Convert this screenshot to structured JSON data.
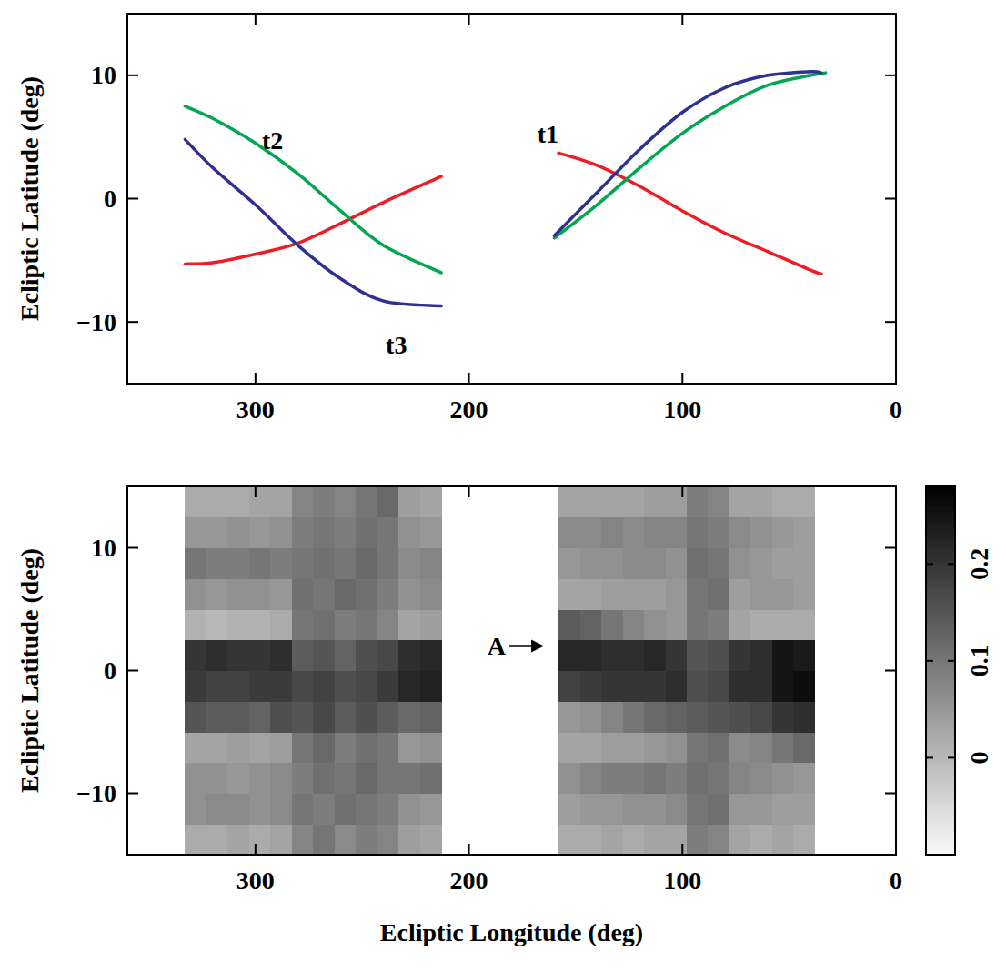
{
  "chart_data": [
    {
      "type": "line",
      "ylabel": "Ecliptic Latitude (deg)",
      "xlim": [
        360,
        0
      ],
      "xticks": [
        300,
        200,
        100,
        0
      ],
      "ylim": [
        -15,
        15
      ],
      "yticks": [
        {
          "value": -10,
          "label": "−10"
        },
        0,
        10
      ],
      "series": [
        {
          "name": "t1",
          "color": "#ee1c25",
          "label_at": [
            163,
            5.2
          ],
          "x": [
            333,
            320,
            300,
            280,
            260,
            240,
            213,
            186,
            158,
            140,
            120,
            100,
            80,
            60,
            40,
            35
          ],
          "values": [
            -5.3,
            -5.2,
            -4.5,
            -3.6,
            -2,
            -0.3,
            1.8,
            null,
            3.7,
            2.7,
            1,
            -1,
            -2.8,
            -4.3,
            -5.8,
            -6.1
          ]
        },
        {
          "name": "t2",
          "color": "#00a651",
          "label_at": [
            292,
            4.7
          ],
          "x": [
            333,
            320,
            300,
            280,
            260,
            240,
            213,
            186,
            160,
            140,
            120,
            100,
            80,
            60,
            40,
            33
          ],
          "values": [
            7.5,
            6.5,
            4.5,
            2,
            -1,
            -3.8,
            -6,
            null,
            -3.2,
            -0.5,
            2.5,
            5.3,
            7.5,
            9.2,
            10,
            10.2
          ]
        },
        {
          "name": "t3",
          "color": "#2e3192",
          "label_at": [
            234,
            -11.9
          ],
          "x": [
            333,
            320,
            300,
            280,
            260,
            240,
            213,
            186,
            160,
            140,
            120,
            100,
            80,
            60,
            40,
            35
          ],
          "values": [
            4.8,
            2.5,
            -0.5,
            -3.8,
            -6.5,
            -8.3,
            -8.7,
            null,
            -3,
            0.5,
            4,
            7,
            9,
            10,
            10.3,
            10.2
          ]
        }
      ]
    },
    {
      "type": "heatmap",
      "xlabel": "Ecliptic Longitude (deg)",
      "ylabel": "Ecliptic Latitude (deg)",
      "xlim": [
        360,
        0
      ],
      "xticks": [
        300,
        200,
        100,
        0
      ],
      "ylim": [
        -15,
        15
      ],
      "yticks": [
        {
          "value": -10,
          "label": "−10"
        },
        0,
        10
      ],
      "x_edges": [
        333,
        323,
        313,
        303,
        293,
        283,
        273,
        263,
        253,
        243,
        233,
        223,
        213,
        158,
        148,
        138,
        128,
        118,
        108,
        98,
        88,
        78,
        68,
        58,
        48,
        38
      ],
      "y_edges": [
        -15,
        -12.5,
        -10,
        -7.5,
        -5,
        -2.5,
        0,
        2.5,
        5,
        7.5,
        10,
        12.5,
        15
      ],
      "cells": [
        [
          0.02,
          0.02,
          0.03,
          0.02,
          0.03,
          0.08,
          0.1,
          0.07,
          0.09,
          0.08,
          0.04,
          0.03,
          null,
          0.02,
          0.02,
          0.03,
          0.02,
          0.03,
          0.03,
          0.09,
          0.08,
          0.03,
          0.02,
          0.03,
          0.02
        ],
        [
          0.06,
          0.07,
          0.07,
          0.06,
          0.07,
          0.1,
          0.09,
          0.11,
          0.1,
          0.09,
          0.06,
          0.05,
          null,
          0.04,
          0.05,
          0.05,
          0.06,
          0.06,
          0.07,
          0.1,
          0.11,
          0.05,
          0.05,
          0.04,
          0.04
        ],
        [
          0.06,
          0.06,
          0.05,
          0.06,
          0.07,
          0.09,
          0.11,
          0.1,
          0.12,
          0.1,
          0.1,
          0.11,
          null,
          0.06,
          0.08,
          0.09,
          0.09,
          0.1,
          0.09,
          0.11,
          0.1,
          0.08,
          0.07,
          0.06,
          0.05
        ],
        [
          0.03,
          0.03,
          0.04,
          0.03,
          0.04,
          0.1,
          0.12,
          0.09,
          0.11,
          0.1,
          0.05,
          0.06,
          null,
          0.03,
          0.03,
          0.04,
          0.04,
          0.05,
          0.06,
          0.1,
          0.11,
          0.07,
          0.08,
          0.1,
          0.12
        ],
        [
          0.15,
          0.14,
          0.14,
          0.13,
          0.16,
          0.15,
          0.17,
          0.14,
          0.16,
          0.14,
          0.12,
          0.13,
          null,
          0.05,
          0.06,
          0.08,
          0.1,
          0.12,
          0.13,
          0.14,
          0.15,
          0.16,
          0.17,
          0.2,
          0.21
        ],
        [
          0.19,
          0.18,
          0.18,
          0.19,
          0.19,
          0.17,
          0.18,
          0.16,
          0.17,
          0.19,
          0.22,
          0.23,
          null,
          0.18,
          0.19,
          0.2,
          0.2,
          0.2,
          0.21,
          0.16,
          0.17,
          0.21,
          0.21,
          0.25,
          0.26
        ],
        [
          0.2,
          0.21,
          0.2,
          0.2,
          0.21,
          0.14,
          0.15,
          0.13,
          0.16,
          0.17,
          0.21,
          0.22,
          null,
          0.22,
          0.22,
          0.21,
          0.21,
          0.22,
          0.2,
          0.15,
          0.16,
          0.2,
          0.21,
          0.25,
          0.24
        ],
        [
          0.01,
          0.0,
          0.01,
          0.01,
          0.02,
          0.1,
          0.11,
          0.09,
          0.1,
          0.08,
          0.03,
          0.04,
          null,
          0.14,
          0.13,
          0.1,
          0.08,
          0.06,
          0.05,
          0.1,
          0.09,
          0.03,
          0.02,
          0.02,
          0.02
        ],
        [
          0.06,
          0.05,
          0.06,
          0.06,
          0.05,
          0.11,
          0.1,
          0.12,
          0.11,
          0.09,
          0.06,
          0.07,
          null,
          0.03,
          0.03,
          0.04,
          0.04,
          0.04,
          0.05,
          0.1,
          0.11,
          0.04,
          0.05,
          0.05,
          0.04
        ],
        [
          0.1,
          0.09,
          0.09,
          0.1,
          0.09,
          0.1,
          0.11,
          0.1,
          0.12,
          0.1,
          0.07,
          0.08,
          null,
          0.05,
          0.06,
          0.06,
          0.07,
          0.07,
          0.06,
          0.11,
          0.1,
          0.06,
          0.05,
          0.04,
          0.04
        ],
        [
          0.05,
          0.05,
          0.06,
          0.05,
          0.06,
          0.09,
          0.1,
          0.09,
          0.11,
          0.1,
          0.06,
          0.05,
          null,
          0.07,
          0.07,
          0.08,
          0.07,
          0.08,
          0.08,
          0.1,
          0.09,
          0.07,
          0.06,
          0.05,
          0.04
        ],
        [
          0.02,
          0.02,
          0.02,
          0.03,
          0.03,
          0.08,
          0.09,
          0.08,
          0.1,
          0.12,
          0.04,
          0.03,
          null,
          0.03,
          0.03,
          0.03,
          0.03,
          0.04,
          0.04,
          0.09,
          0.08,
          0.03,
          0.03,
          0.02,
          0.02
        ]
      ],
      "colorbar": {
        "range": [
          -0.1,
          0.28
        ],
        "ticks": [
          0,
          0.1,
          0.2
        ]
      },
      "annotations": [
        {
          "text": "A",
          "x": 164,
          "y": 2
        }
      ]
    }
  ]
}
